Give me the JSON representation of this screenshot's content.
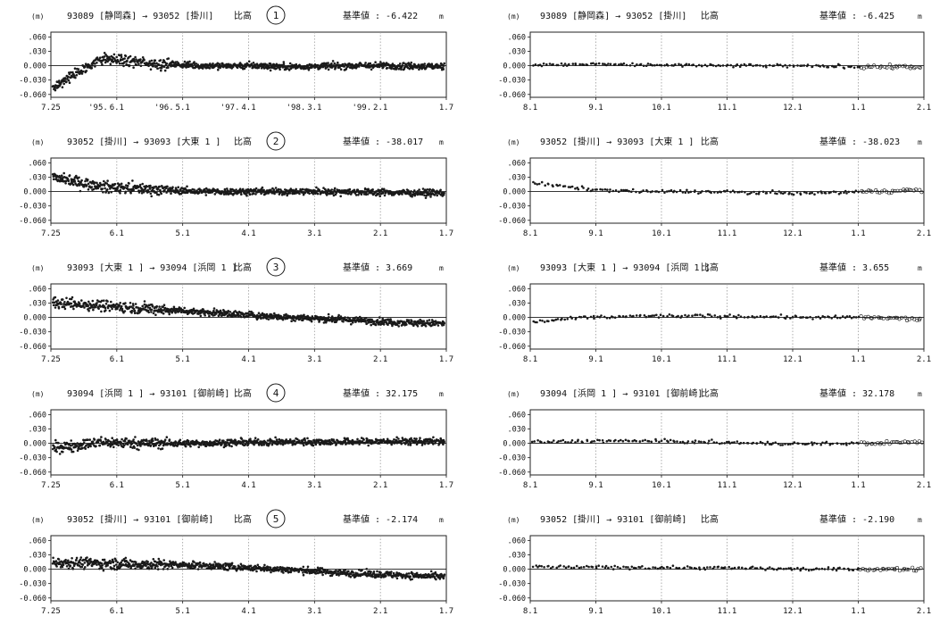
{
  "common": {
    "unit_left": "(m)",
    "unit_right": "m",
    "quantity": "比高",
    "base_label": "基準値 :",
    "yticks": [
      ".060",
      ".030",
      "0.000",
      "-0.030",
      "-0.060"
    ],
    "ytick_values": [
      0.06,
      0.03,
      0.0,
      -0.03,
      -0.06
    ],
    "ylim": [
      -0.066,
      0.07
    ],
    "left_xticks": [
      "7.25",
      "6.1",
      "5.1",
      "4.1",
      "3.1",
      "2.1",
      "1.7"
    ],
    "right_xticks": [
      "8.1",
      "9.1",
      "10.1",
      "11.1",
      "12.1",
      "1.1",
      "2.1"
    ],
    "left_year_labels": [
      "'95.",
      "'96.",
      "'97.",
      "'98.",
      "'99."
    ],
    "colors": {
      "ink": "#1a1a1a",
      "grid": "#9a9a9a",
      "frame": "#222222"
    }
  },
  "chart_data": [
    {
      "type": "scatter",
      "panel": "left",
      "route": "93089 [静岡森] → 93052 [掛川]",
      "number": "1",
      "base_value": "-6.422",
      "show_years": true,
      "series": [
        {
          "values": [
            -0.045,
            0.015,
            0.005,
            0.0,
            0.0,
            -0.002,
            0.0,
            0.0,
            -0.002
          ]
        }
      ]
    },
    {
      "type": "scatter",
      "panel": "right",
      "route": "93089 [静岡森] → 93052 [掛川]",
      "base_value": "-6.425",
      "series": [
        {
          "values": [
            0.003,
            0.003,
            0.002,
            0.0,
            0.0,
            -0.001,
            -0.002,
            -0.003
          ]
        }
      ]
    },
    {
      "type": "scatter",
      "panel": "left",
      "route": "93052 [掛川] → 93093 [大東 1 ]",
      "number": "2",
      "base_value": "-38.017",
      "series": [
        {
          "values": [
            0.03,
            0.01,
            0.005,
            0.0,
            0.0,
            0.0,
            0.0,
            -0.002,
            -0.003
          ]
        }
      ]
    },
    {
      "type": "scatter",
      "panel": "right",
      "route": "93052 [掛川] → 93093 [大東 1 ]",
      "base_value": "-38.023",
      "series": [
        {
          "values": [
            0.018,
            0.005,
            0.0,
            0.0,
            -0.002,
            -0.004,
            0.0,
            0.003
          ]
        }
      ]
    },
    {
      "type": "scatter",
      "panel": "left",
      "route": "93093 [大東 1 ] → 93094 [浜岡 1 ]",
      "number": "3",
      "base_value": "3.669",
      "series": [
        {
          "values": [
            0.03,
            0.025,
            0.018,
            0.012,
            0.005,
            0.0,
            -0.005,
            -0.01,
            -0.013
          ]
        }
      ]
    },
    {
      "type": "scatter",
      "panel": "right",
      "route": "93093 [大東 1 ] → 93094 [浜岡 1 ]",
      "base_value": "3.655",
      "series": [
        {
          "values": [
            -0.01,
            0.0,
            0.003,
            0.003,
            0.002,
            0.0,
            0.0,
            -0.004
          ]
        }
      ]
    },
    {
      "type": "scatter",
      "panel": "left",
      "route": "93094 [浜岡 1 ] → 93101 [御前崎]",
      "number": "4",
      "base_value": "32.175",
      "series": [
        {
          "values": [
            -0.01,
            0.002,
            0.0,
            0.0,
            0.002,
            0.003,
            0.003,
            0.004,
            0.004
          ]
        }
      ]
    },
    {
      "type": "scatter",
      "panel": "right",
      "route": "93094 [浜岡 1 ] → 93101 [御前崎]",
      "base_value": "32.178",
      "series": [
        {
          "values": [
            0.002,
            0.005,
            0.005,
            0.003,
            0.0,
            -0.001,
            0.0,
            0.003
          ]
        }
      ]
    },
    {
      "type": "scatter",
      "panel": "left",
      "route": "93052 [掛川] → 93101 [御前崎]",
      "number": "5",
      "base_value": "-2.174",
      "series": [
        {
          "values": [
            0.015,
            0.012,
            0.01,
            0.008,
            0.003,
            -0.002,
            -0.008,
            -0.012,
            -0.016
          ]
        }
      ]
    },
    {
      "type": "scatter",
      "panel": "right",
      "route": "93052 [掛川] → 93101 [御前崎]",
      "base_value": "-2.190",
      "series": [
        {
          "values": [
            0.005,
            0.004,
            0.004,
            0.003,
            0.002,
            0.0,
            0.0,
            0.0
          ]
        }
      ]
    }
  ]
}
